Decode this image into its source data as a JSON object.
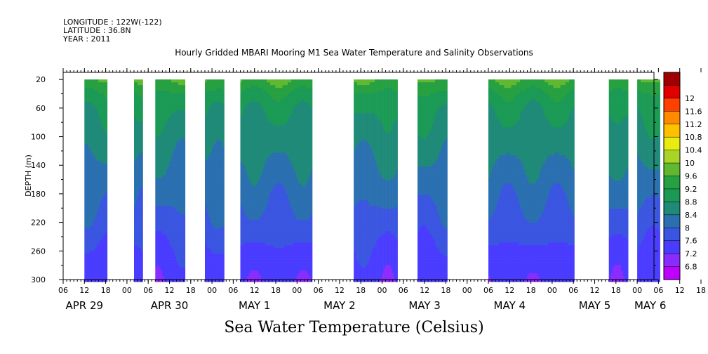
{
  "header": {
    "longitude": "LONGITUDE : 122W(-122)",
    "latitude": "LATITUDE : 36.8N",
    "year": "YEAR : 2011"
  },
  "chart_data": {
    "type": "heatmap",
    "title": "Hourly Gridded MBARI Mooring M1 Sea Water Temperature and Salinity Observations",
    "xlabel": "Sea Water Temperature (Celsius)",
    "ylabel": "DEPTH (m)",
    "ylim": [
      300,
      20
    ],
    "yticks": [
      20,
      60,
      100,
      140,
      180,
      220,
      260,
      300
    ],
    "xtick_labels": [
      "06",
      "12",
      "18",
      "00",
      "06",
      "12",
      "18",
      "00",
      "06",
      "12",
      "18",
      "00",
      "06",
      "12",
      "18",
      "00",
      "06",
      "12",
      "18",
      "00",
      "06",
      "12",
      "18",
      "00",
      "06",
      "12",
      "18",
      "00",
      "06",
      "12",
      "18",
      "00",
      "06"
    ],
    "date_labels": [
      "APR 29",
      "APR 30",
      "MAY  1",
      "MAY  2",
      "MAY  3",
      "MAY  4",
      "MAY  5",
      "MAY  6"
    ],
    "colorbar": {
      "levels": [
        6.8,
        7.2,
        7.6,
        8,
        8.4,
        8.8,
        9.2,
        9.6,
        10,
        10.4,
        10.8,
        11.2,
        11.6,
        12
      ],
      "colors": [
        "#c000ff",
        "#8a2cff",
        "#4a3cff",
        "#3a55e0",
        "#2a70b0",
        "#1f8a78",
        "#1b9a55",
        "#26a040",
        "#60b830",
        "#a8d428",
        "#e8ec10",
        "#ffc000",
        "#ff8a00",
        "#ff4000",
        "#e00000",
        "#a00000"
      ]
    },
    "data_segments": [
      {
        "start": "APR 29 12",
        "end": "APR 29 18"
      },
      {
        "start": "APR 30 02",
        "end": "APR 30 04"
      },
      {
        "start": "APR 30 08",
        "end": "APR 30 16"
      },
      {
        "start": "APR 30 22",
        "end": "MAY 1 03"
      },
      {
        "start": "MAY 1 08",
        "end": "MAY 2 04"
      },
      {
        "start": "MAY 2 16",
        "end": "MAY 3 04"
      },
      {
        "start": "MAY 3 10",
        "end": "MAY 3 18"
      },
      {
        "start": "MAY 4 06",
        "end": "MAY 5 06"
      },
      {
        "start": "MAY 5 16",
        "end": "MAY 5 21"
      },
      {
        "start": "MAY 6 00",
        "end": "MAY 6 06"
      }
    ],
    "profile": [
      {
        "depth": 20,
        "temp": 9.6
      },
      {
        "depth": 40,
        "temp": 9.1
      },
      {
        "depth": 60,
        "temp": 8.85
      },
      {
        "depth": 100,
        "temp": 8.6
      },
      {
        "depth": 140,
        "temp": 8.35
      },
      {
        "depth": 180,
        "temp": 8.1
      },
      {
        "depth": 220,
        "temp": 7.85
      },
      {
        "depth": 260,
        "temp": 7.5
      },
      {
        "depth": 300,
        "temp": 7.3
      }
    ]
  }
}
